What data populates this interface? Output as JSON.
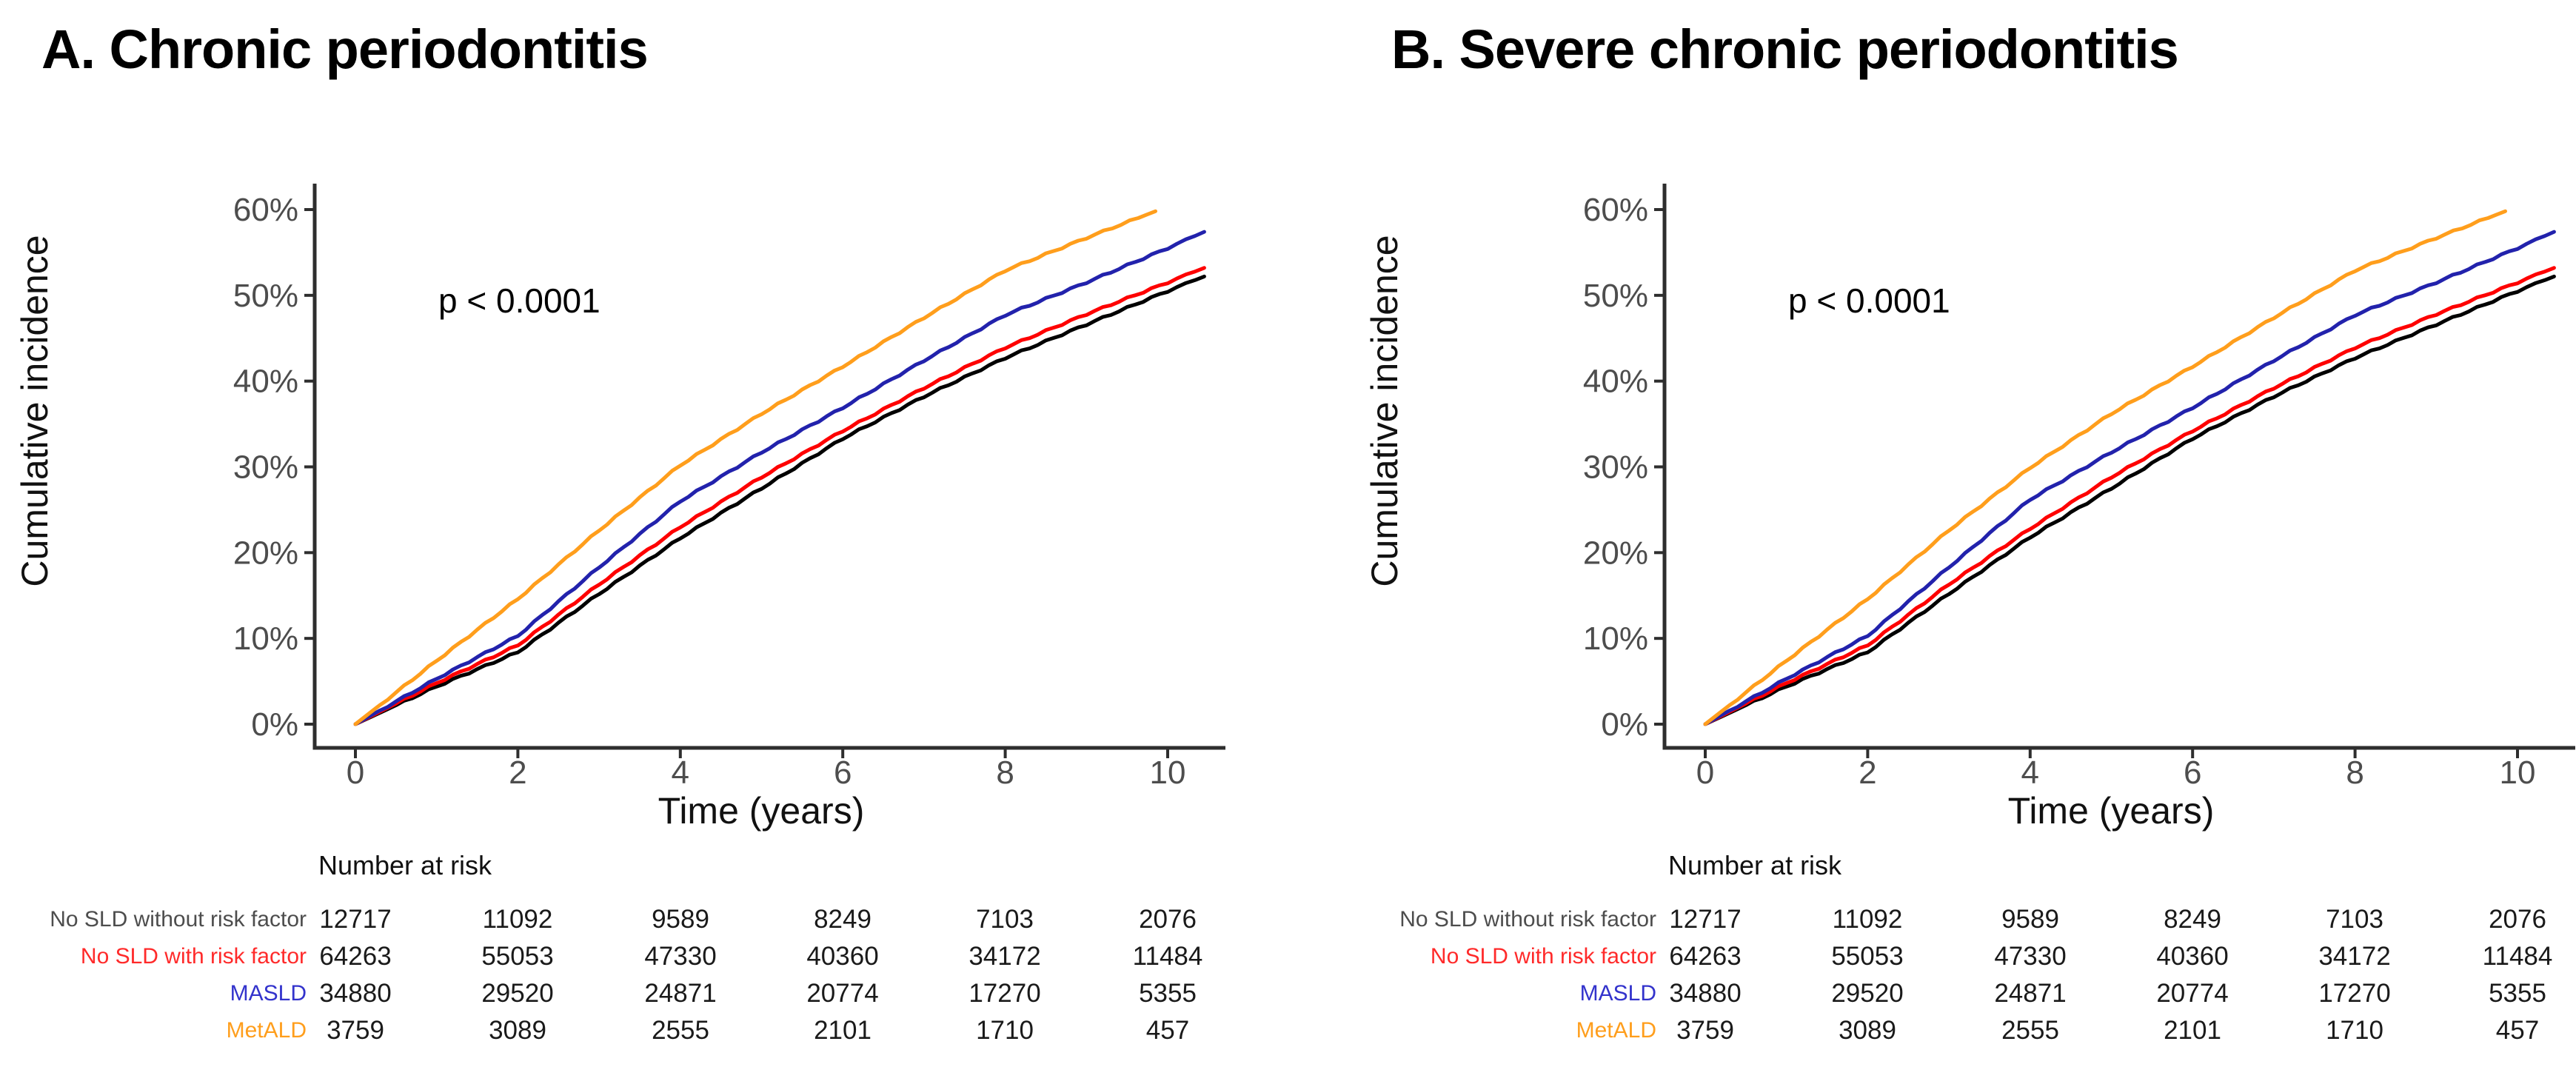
{
  "figure": {
    "background": "#ffffff"
  },
  "colors": {
    "axis": "#2e2e2e",
    "tick_label": "#4d4d4d",
    "text": "#000000",
    "table_number": "#1a1a1a"
  },
  "panels": [
    {
      "id": "A",
      "title": "A. Chronic periodontitis",
      "annotation_p_value": "p < 0.0001",
      "xlabel": "Time (years)",
      "ylabel": "Cumulative incidence",
      "x_tick_labels": [
        "0",
        "2",
        "4",
        "6",
        "8",
        "10"
      ],
      "y_tick_labels": [
        "0%",
        "10%",
        "20%",
        "30%",
        "40%",
        "50%",
        "60%"
      ],
      "chart_data": {
        "type": "line",
        "title": "A. Chronic periodontitis",
        "xlabel": "Time (years)",
        "ylabel": "Cumulative incidence",
        "xlim": [
          0,
          10.5
        ],
        "ylim": [
          0,
          62
        ],
        "y_unit": "%",
        "grid": false,
        "legend_position": "none",
        "annotation": {
          "text": "p < 0.0001",
          "x_years": 1.0,
          "y_pct": 50
        },
        "series": [
          {
            "name": "No SLD without risk factor",
            "color": "#000000",
            "x": [
              0,
              1,
              2,
              3,
              4,
              5,
              6,
              7,
              8,
              9,
              10,
              10.45
            ],
            "y": [
              0,
              4.4,
              8.4,
              15.2,
              21.7,
              27.5,
              33.3,
              38.2,
              42.7,
              46.6,
              50.5,
              52.2
            ]
          },
          {
            "name": "No SLD with risk factor",
            "color": "#fe0000",
            "x": [
              0,
              1,
              2,
              3,
              4,
              5,
              6,
              7,
              8,
              9,
              10,
              10.45
            ],
            "y": [
              0,
              4.8,
              9.2,
              16.3,
              23.0,
              28.8,
              34.2,
              39.2,
              43.9,
              47.8,
              51.5,
              53.2
            ]
          },
          {
            "name": "MASLD",
            "color": "#2222ac",
            "x": [
              0,
              1,
              2,
              3,
              4,
              5,
              6,
              7,
              8,
              9,
              10,
              10.45
            ],
            "y": [
              0,
              5.3,
              10.3,
              18.3,
              26.0,
              31.7,
              36.9,
              42.4,
              47.7,
              51.5,
              55.5,
              57.4
            ]
          },
          {
            "name": "MetALD",
            "color": "#ff9e1c",
            "x": [
              0,
              1,
              2,
              3,
              4,
              5,
              6,
              7,
              8,
              9,
              9.85
            ],
            "y": [
              0,
              7.4,
              14.6,
              22.6,
              30.2,
              36.2,
              41.7,
              47.4,
              52.9,
              56.7,
              59.8
            ]
          }
        ]
      },
      "risk_table": {
        "header": "Number at risk",
        "time_points": [
          0,
          2,
          4,
          6,
          8,
          10
        ],
        "rows": [
          {
            "label": "No SLD without risk factor",
            "label_color": "#4d4d4d",
            "values": [
              "12717",
              "11092",
              "9589",
              "8249",
              "7103",
              "2076"
            ]
          },
          {
            "label": "No SLD with risk factor",
            "label_color": "#ff2a2a",
            "values": [
              "64263",
              "55053",
              "47330",
              "40360",
              "34172",
              "11484"
            ]
          },
          {
            "label": "MASLD",
            "label_color": "#3333cc",
            "values": [
              "34880",
              "29520",
              "24871",
              "20774",
              "17270",
              "5355"
            ]
          },
          {
            "label": "MetALD",
            "label_color": "#ff9e1c",
            "values": [
              "3759",
              "3089",
              "2555",
              "2101",
              "1710",
              "457"
            ]
          }
        ]
      }
    },
    {
      "id": "B",
      "title": "B. Severe chronic periodontitis",
      "annotation_p_value": "p < 0.0001",
      "xlabel": "Time (years)",
      "ylabel": "Cumulative incidence",
      "x_tick_labels": [
        "0",
        "2",
        "4",
        "6",
        "8",
        "10"
      ],
      "y_tick_labels": [
        "0%",
        "10%",
        "20%",
        "30%",
        "40%",
        "50%",
        "60%"
      ],
      "chart_data": {
        "type": "line",
        "title": "B. Severe chronic periodontitis",
        "xlabel": "Time (years)",
        "ylabel": "Cumulative incidence",
        "xlim": [
          0,
          10.5
        ],
        "ylim": [
          0,
          62
        ],
        "y_unit": "%",
        "grid": false,
        "legend_position": "none",
        "annotation": {
          "text": "p < 0.0001",
          "x_years": 1.0,
          "y_pct": 50
        },
        "series": [
          {
            "name": "No SLD without risk factor",
            "color": "#000000",
            "x": [
              0,
              1,
              2,
              3,
              4,
              5,
              6,
              7,
              8,
              9,
              10,
              10.45
            ],
            "y": [
              0,
              4.4,
              8.4,
              15.2,
              21.8,
              27.5,
              33.3,
              38.2,
              42.7,
              46.6,
              50.5,
              52.2
            ]
          },
          {
            "name": "No SLD with risk factor",
            "color": "#fe0000",
            "x": [
              0,
              1,
              2,
              3,
              4,
              5,
              6,
              7,
              8,
              9,
              10,
              10.45
            ],
            "y": [
              0,
              4.8,
              9.2,
              16.3,
              22.8,
              28.8,
              34.2,
              39.2,
              43.9,
              47.8,
              51.5,
              53.2
            ]
          },
          {
            "name": "MASLD",
            "color": "#2222ac",
            "x": [
              0,
              1,
              2,
              3,
              4,
              5,
              6,
              7,
              8,
              9,
              10,
              10.45
            ],
            "y": [
              0,
              5.3,
              10.3,
              18.3,
              26.2,
              31.7,
              36.9,
              42.4,
              47.7,
              51.5,
              55.5,
              57.4
            ]
          },
          {
            "name": "MetALD",
            "color": "#ff9e1c",
            "x": [
              0,
              1,
              2,
              3,
              4,
              5,
              6,
              7,
              8,
              9,
              9.85
            ],
            "y": [
              0,
              7.4,
              14.6,
              22.6,
              29.9,
              36.2,
              41.7,
              47.4,
              52.9,
              56.7,
              59.8
            ]
          }
        ]
      },
      "risk_table": {
        "header": "Number at risk",
        "time_points": [
          0,
          2,
          4,
          6,
          8,
          10
        ],
        "rows": [
          {
            "label": "No SLD without risk factor",
            "label_color": "#4d4d4d",
            "values": [
              "12717",
              "11092",
              "9589",
              "8249",
              "7103",
              "2076"
            ]
          },
          {
            "label": "No SLD with risk factor",
            "label_color": "#ff2a2a",
            "values": [
              "64263",
              "55053",
              "47330",
              "40360",
              "34172",
              "11484"
            ]
          },
          {
            "label": "MASLD",
            "label_color": "#3333cc",
            "values": [
              "34880",
              "29520",
              "24871",
              "20774",
              "17270",
              "5355"
            ]
          },
          {
            "label": "MetALD",
            "label_color": "#ff9e1c",
            "values": [
              "3759",
              "3089",
              "2555",
              "2101",
              "1710",
              "457"
            ]
          }
        ]
      }
    }
  ]
}
